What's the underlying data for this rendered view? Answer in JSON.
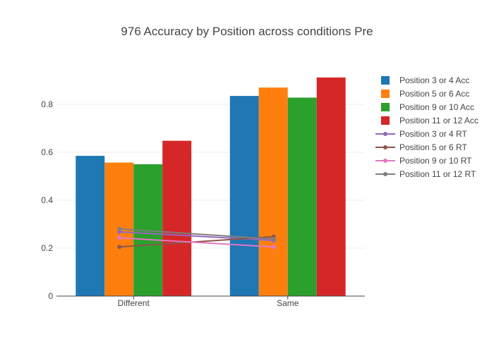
{
  "chart_data": {
    "type": "bar",
    "title": "976 Accuracy by Position across conditions Pre",
    "xlabel": "",
    "ylabel": "",
    "categories": [
      "Different",
      "Same"
    ],
    "ylim": [
      0,
      1.0
    ],
    "y_ticks": [
      0,
      0.2,
      0.4,
      0.6,
      0.8
    ],
    "y_tick_labels": [
      "0",
      "0.2",
      "0.4",
      "0.6",
      "0.8"
    ],
    "grid": true,
    "legend_position": "right",
    "series": [
      {
        "name": "Position 3 or 4 Acc",
        "kind": "bar",
        "color": "#1f77b4",
        "values": [
          0.585,
          0.835
        ]
      },
      {
        "name": "Position 5 or 6 Acc",
        "kind": "bar",
        "color": "#ff7f0e",
        "values": [
          0.557,
          0.87
        ]
      },
      {
        "name": "Position 9 or 10 Acc",
        "kind": "bar",
        "color": "#2ca02c",
        "values": [
          0.55,
          0.828
        ]
      },
      {
        "name": "Position 11 or 12 Acc",
        "kind": "bar",
        "color": "#d62728",
        "values": [
          0.648,
          0.912
        ]
      },
      {
        "name": "Position 3 or 4 RT",
        "kind": "line",
        "color": "#9467bd",
        "values": [
          0.268,
          0.232
        ]
      },
      {
        "name": "Position 5 or 6 RT",
        "kind": "line",
        "color": "#8c564b",
        "values": [
          0.205,
          0.248
        ]
      },
      {
        "name": "Position 9 or 10 RT",
        "kind": "line",
        "color": "#e377c2",
        "values": [
          0.243,
          0.205
        ]
      },
      {
        "name": "Position 11 or 12 RT",
        "kind": "line",
        "color": "#7f7f7f",
        "values": [
          0.28,
          0.238
        ]
      }
    ]
  }
}
